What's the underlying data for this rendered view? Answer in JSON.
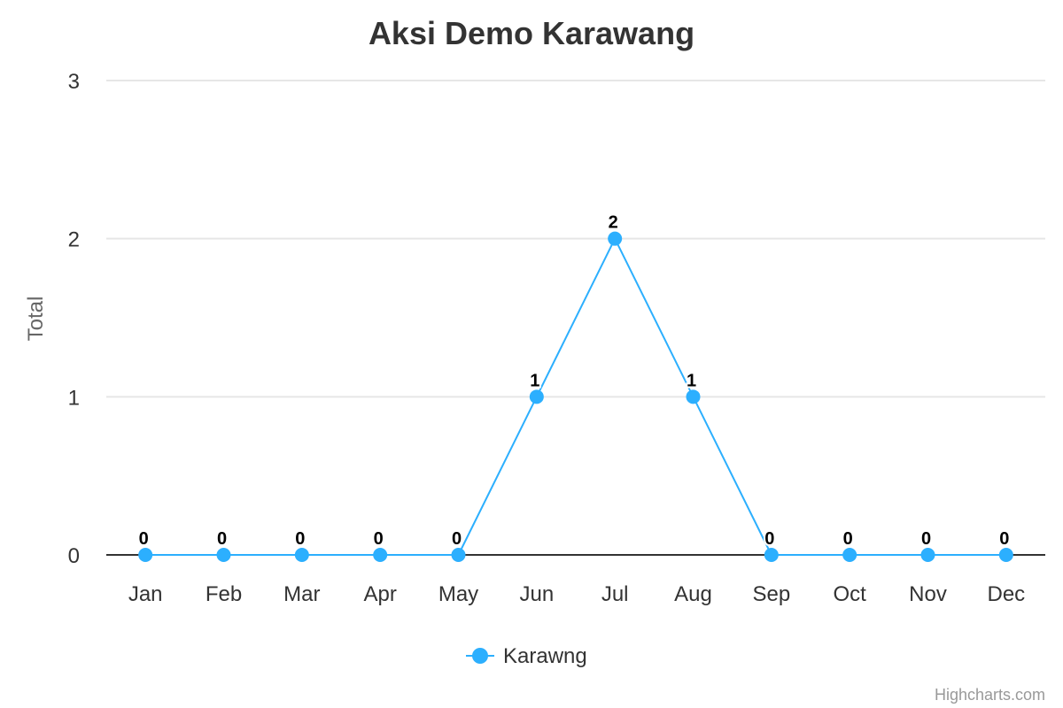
{
  "chart_data": {
    "type": "line",
    "title": "Aksi Demo Karawang",
    "xlabel": "",
    "ylabel": "Total",
    "categories": [
      "Jan",
      "Feb",
      "Mar",
      "Apr",
      "May",
      "Jun",
      "Jul",
      "Aug",
      "Sep",
      "Oct",
      "Nov",
      "Dec"
    ],
    "ylim": [
      0,
      3
    ],
    "yticks": [
      "0",
      "1",
      "2",
      "3"
    ],
    "grid": true,
    "legend": "bottom-center",
    "series": [
      {
        "name": "Karawng",
        "color": "#2caffe",
        "values": [
          0,
          0,
          0,
          0,
          0,
          1,
          2,
          1,
          0,
          0,
          0,
          0
        ]
      }
    ]
  },
  "credits": "Highcharts.com"
}
